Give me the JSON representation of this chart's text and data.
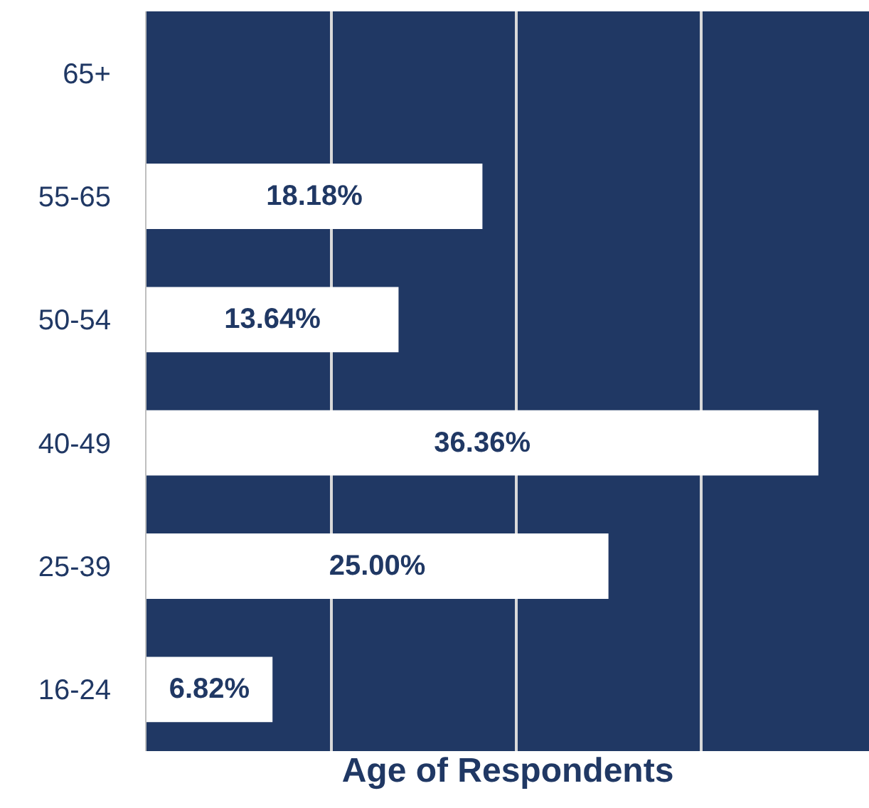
{
  "chart_data": {
    "type": "bar",
    "orientation": "horizontal",
    "xlabel": "Age of Respondents",
    "categories": [
      "65+",
      "55-65",
      "50-54",
      "40-49",
      "25-39",
      "16-24"
    ],
    "values": [
      0,
      18.18,
      13.64,
      36.36,
      25.0,
      6.82
    ],
    "value_labels": [
      null,
      "18.18%",
      "13.64%",
      "36.36%",
      "25.00%",
      "6.82%"
    ],
    "color": "#ffffff",
    "xlim": [
      0,
      39.1
    ],
    "xticks": [
      {
        "value": 10,
        "label": null
      },
      {
        "value": 20,
        "label": null
      },
      {
        "value": 30,
        "label": null
      }
    ],
    "grid": "x"
  }
}
